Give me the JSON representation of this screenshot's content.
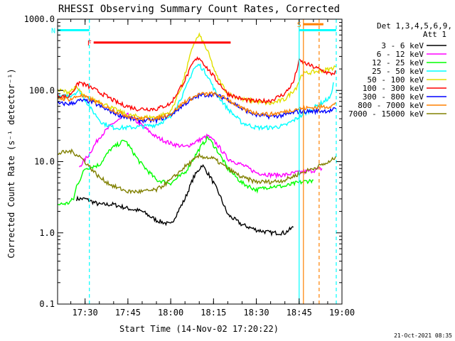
{
  "chart_data": {
    "type": "line",
    "title": "RHESSI Observing Summary Count Rates, Corrected",
    "xlabel": "Start Time (14-Nov-02 17:20:22)",
    "ylabel": "Corrected Count Rate (s⁻¹ detector⁻¹)",
    "ylog": true,
    "ylim": [
      0.1,
      1000
    ],
    "xlim": [
      "17:20:22",
      "19:00:00"
    ],
    "x_ticks": [
      "17:30",
      "17:45",
      "18:00",
      "18:15",
      "18:30",
      "18:45",
      "19:00"
    ],
    "y_ticks": [
      "0.1",
      "1.0",
      "10.0",
      "100.0",
      "1000.0"
    ],
    "legend": {
      "placement": "right",
      "header": [
        "Det 1,3,4,5,6,9,",
        "Att 1"
      ]
    },
    "footer": "21-Oct-2021 08:35",
    "series": [
      {
        "name": "3 - 6 keV",
        "color": "#000000",
        "points": [
          [
            "17:27",
            3.0
          ],
          [
            "17:30",
            3.0
          ],
          [
            "17:35",
            2.5
          ],
          [
            "17:40",
            2.5
          ],
          [
            "17:45",
            2.2
          ],
          [
            "17:50",
            2.0
          ],
          [
            "17:55",
            1.5
          ],
          [
            "18:00",
            1.3
          ],
          [
            "18:05",
            3.0
          ],
          [
            "18:08",
            6.0
          ],
          [
            "18:11",
            9.0
          ],
          [
            "18:14",
            6.0
          ],
          [
            "18:17",
            3.5
          ],
          [
            "18:20",
            1.8
          ],
          [
            "18:25",
            1.3
          ],
          [
            "18:30",
            1.1
          ],
          [
            "18:35",
            1.0
          ],
          [
            "18:40",
            1.0
          ],
          [
            "18:43",
            1.2
          ]
        ]
      },
      {
        "name": "6 - 12 keV",
        "color": "#ff00ff",
        "points": [
          [
            "17:28",
            8.5
          ],
          [
            "17:31",
            12.0
          ],
          [
            "17:35",
            22.0
          ],
          [
            "17:40",
            35.0
          ],
          [
            "17:45",
            45.0
          ],
          [
            "17:50",
            32.0
          ],
          [
            "17:55",
            22.0
          ],
          [
            "18:00",
            18.0
          ],
          [
            "18:05",
            16.0
          ],
          [
            "18:10",
            20.0
          ],
          [
            "18:13",
            23.0
          ],
          [
            "18:16",
            18.0
          ],
          [
            "18:20",
            11.0
          ],
          [
            "18:25",
            9.0
          ],
          [
            "18:30",
            7.0
          ],
          [
            "18:35",
            6.5
          ],
          [
            "18:40",
            6.5
          ],
          [
            "18:44",
            7.0
          ],
          [
            "18:50",
            7.5
          ],
          [
            "18:53",
            8.0
          ]
        ]
      },
      {
        "name": "12 - 25 keV",
        "color": "#00ff00",
        "points": [
          [
            "17:20:22",
            2.5
          ],
          [
            "17:24",
            2.6
          ],
          [
            "17:26",
            3.0
          ],
          [
            "17:27",
            4.5
          ],
          [
            "17:30",
            8.0
          ],
          [
            "17:35",
            9.0
          ],
          [
            "17:39",
            15.0
          ],
          [
            "17:44",
            20.0
          ],
          [
            "17:49",
            10.0
          ],
          [
            "17:55",
            5.5
          ],
          [
            "18:00",
            5.0
          ],
          [
            "18:05",
            7.0
          ],
          [
            "18:10",
            15.0
          ],
          [
            "18:13",
            22.0
          ],
          [
            "18:16",
            15.0
          ],
          [
            "18:20",
            8.0
          ],
          [
            "18:25",
            5.0
          ],
          [
            "18:30",
            4.0
          ],
          [
            "18:35",
            4.5
          ],
          [
            "18:40",
            4.5
          ],
          [
            "18:44",
            5.0
          ],
          [
            "18:50",
            5.5
          ]
        ]
      },
      {
        "name": "25 - 50 keV",
        "color": "#00ffff",
        "points": [
          [
            "17:20:22",
            80.0
          ],
          [
            "17:25",
            85.0
          ],
          [
            "17:28",
            100.0
          ],
          [
            "17:32",
            55.0
          ],
          [
            "17:36",
            35.0
          ],
          [
            "17:40",
            30.0
          ],
          [
            "17:45",
            30.0
          ],
          [
            "17:50",
            31.0
          ],
          [
            "17:55",
            33.0
          ],
          [
            "18:00",
            42.0
          ],
          [
            "18:05",
            100.0
          ],
          [
            "18:08",
            200.0
          ],
          [
            "18:10",
            230.0
          ],
          [
            "18:13",
            160.0
          ],
          [
            "18:16",
            90.0
          ],
          [
            "18:20",
            55.0
          ],
          [
            "18:25",
            35.0
          ],
          [
            "18:30",
            30.0
          ],
          [
            "18:35",
            30.0
          ],
          [
            "18:40",
            32.0
          ],
          [
            "18:44",
            40.0
          ],
          [
            "18:56",
            80.0
          ],
          [
            "18:57",
            130.0
          ]
        ]
      },
      {
        "name": "50 - 100 keV",
        "color": "#e0e000",
        "points": [
          [
            "17:20:22",
            100.0
          ],
          [
            "17:24",
            95.0
          ],
          [
            "17:27",
            110.0
          ],
          [
            "17:30",
            80.0
          ],
          [
            "17:35",
            70.0
          ],
          [
            "17:40",
            55.0
          ],
          [
            "17:45",
            45.0
          ],
          [
            "17:50",
            42.0
          ],
          [
            "17:55",
            42.0
          ],
          [
            "18:00",
            50.0
          ],
          [
            "18:04",
            120.0
          ],
          [
            "18:08",
            450.0
          ],
          [
            "18:10",
            600.0
          ],
          [
            "18:13",
            350.0
          ],
          [
            "18:16",
            160.0
          ],
          [
            "18:20",
            90.0
          ],
          [
            "18:25",
            75.0
          ],
          [
            "18:30",
            70.0
          ],
          [
            "18:35",
            65.0
          ],
          [
            "18:40",
            75.0
          ],
          [
            "18:44",
            110.0
          ],
          [
            "18:46",
            170.0
          ],
          [
            "18:56",
            200.0
          ],
          [
            "18:58",
            220.0
          ]
        ]
      },
      {
        "name": "100 - 300 keV",
        "color": "#ff0000",
        "points": [
          [
            "17:20:22",
            85.0
          ],
          [
            "17:24",
            80.0
          ],
          [
            "17:28",
            130.0
          ],
          [
            "17:32",
            110.0
          ],
          [
            "17:37",
            85.0
          ],
          [
            "17:42",
            65.0
          ],
          [
            "17:48",
            55.0
          ],
          [
            "17:55",
            55.0
          ],
          [
            "18:00",
            65.0
          ],
          [
            "18:05",
            140.0
          ],
          [
            "18:08",
            250.0
          ],
          [
            "18:10",
            290.0
          ],
          [
            "18:13",
            200.0
          ],
          [
            "18:16",
            140.0
          ],
          [
            "18:20",
            90.0
          ],
          [
            "18:25",
            75.0
          ],
          [
            "18:30",
            70.0
          ],
          [
            "18:35",
            72.0
          ],
          [
            "18:40",
            90.0
          ],
          [
            "18:43",
            130.0
          ],
          [
            "18:45",
            260.0
          ],
          [
            "18:56",
            170.0
          ],
          [
            "18:58",
            180.0
          ]
        ]
      },
      {
        "name": "300 - 800 keV",
        "color": "#0000ff",
        "points": [
          [
            "17:20:22",
            65.0
          ],
          [
            "17:25",
            65.0
          ],
          [
            "17:28",
            72.0
          ],
          [
            "17:32",
            70.0
          ],
          [
            "17:37",
            55.0
          ],
          [
            "17:42",
            45.0
          ],
          [
            "17:48",
            38.0
          ],
          [
            "17:55",
            38.0
          ],
          [
            "18:00",
            45.0
          ],
          [
            "18:05",
            65.0
          ],
          [
            "18:10",
            85.0
          ],
          [
            "18:15",
            88.0
          ],
          [
            "18:20",
            75.0
          ],
          [
            "18:25",
            55.0
          ],
          [
            "18:30",
            45.0
          ],
          [
            "18:35",
            43.0
          ],
          [
            "18:40",
            45.0
          ],
          [
            "18:44",
            50.0
          ],
          [
            "18:56",
            52.0
          ],
          [
            "18:58",
            55.0
          ]
        ]
      },
      {
        "name": "800 - 7000 keV",
        "color": "#ff8000",
        "points": [
          [
            "17:20:22",
            78.0
          ],
          [
            "17:25",
            75.0
          ],
          [
            "17:28",
            85.0
          ],
          [
            "17:32",
            75.0
          ],
          [
            "17:37",
            60.0
          ],
          [
            "17:42",
            48.0
          ],
          [
            "17:48",
            40.0
          ],
          [
            "17:55",
            40.0
          ],
          [
            "18:00",
            47.0
          ],
          [
            "18:05",
            70.0
          ],
          [
            "18:10",
            88.0
          ],
          [
            "18:15",
            90.0
          ],
          [
            "18:20",
            75.0
          ],
          [
            "18:25",
            55.0
          ],
          [
            "18:30",
            48.0
          ],
          [
            "18:35",
            46.0
          ],
          [
            "18:40",
            50.0
          ],
          [
            "18:44",
            55.0
          ],
          [
            "18:56",
            60.0
          ],
          [
            "18:58",
            65.0
          ]
        ]
      },
      {
        "name": "7000 - 15000 keV",
        "color": "#808000",
        "points": [
          [
            "17:20:22",
            13.0
          ],
          [
            "17:25",
            14.0
          ],
          [
            "17:28",
            12.0
          ],
          [
            "17:31",
            9.0
          ],
          [
            "17:35",
            6.0
          ],
          [
            "17:40",
            4.5
          ],
          [
            "17:45",
            3.8
          ],
          [
            "17:50",
            3.8
          ],
          [
            "17:55",
            4.0
          ],
          [
            "18:00",
            5.5
          ],
          [
            "18:05",
            8.5
          ],
          [
            "18:10",
            12.0
          ],
          [
            "18:15",
            11.0
          ],
          [
            "18:20",
            8.0
          ],
          [
            "18:25",
            6.0
          ],
          [
            "18:30",
            5.2
          ],
          [
            "18:35",
            5.2
          ],
          [
            "18:40",
            5.5
          ],
          [
            "18:44",
            6.5
          ],
          [
            "18:56",
            10.0
          ],
          [
            "18:58",
            12.0
          ]
        ]
      }
    ],
    "vlines": [
      {
        "at": "17:31:30",
        "color": "#00ffff",
        "dash": true
      },
      {
        "at": "18:45:00",
        "color": "#00ffff",
        "dash": false
      },
      {
        "at": "18:46:30",
        "color": "#ff8000",
        "dash": false
      },
      {
        "at": "18:52:00",
        "color": "#ff8000",
        "dash": true
      },
      {
        "at": "18:58:00",
        "color": "#00ffff",
        "dash": true
      }
    ],
    "flag_bars": [
      {
        "label": "N",
        "color": "#00ffff",
        "y": 700,
        "from": "17:20:22",
        "to": "17:31:30"
      },
      {
        "label": "F",
        "color": "#ff0000",
        "y": 470,
        "from": "17:33:00",
        "to": "18:21:00"
      },
      {
        "label": "S",
        "color": "#ff8000",
        "y": 850,
        "from": "18:46:30",
        "to": "18:53:30"
      },
      {
        "label": "",
        "color": "#00ffff",
        "y": 700,
        "from": "18:45:00",
        "to": "18:58:00"
      }
    ]
  }
}
